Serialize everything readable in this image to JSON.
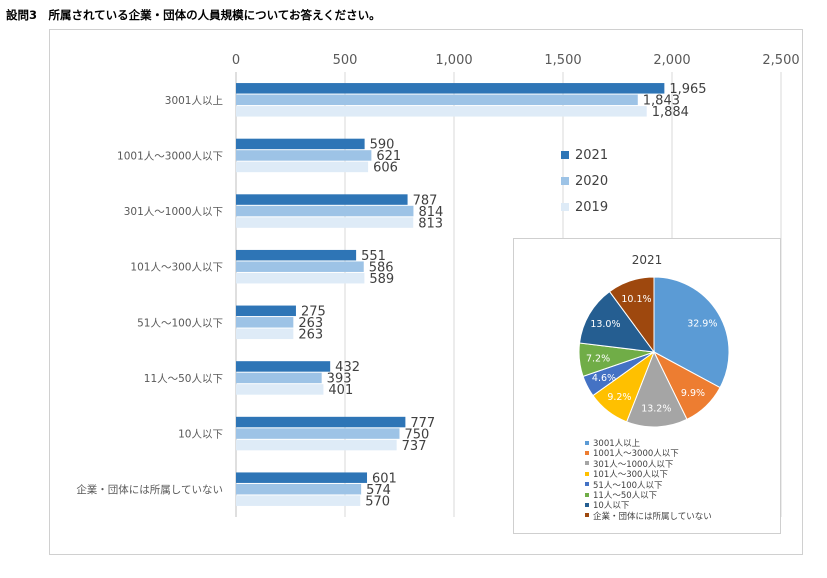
{
  "page": {
    "title": "設問3　所属されている企業・団体の人員規模についてお答えください。"
  },
  "colors": {
    "y2021": "#2e75b6",
    "y2020": "#9dc3e6",
    "y2019": "#deebf7"
  },
  "chart_data": [
    {
      "type": "bar",
      "orientation": "horizontal",
      "title": "",
      "xlim": [
        0,
        2500
      ],
      "xticks": [
        0,
        500,
        1000,
        1500,
        2000,
        2500
      ],
      "xtick_labels": [
        "0",
        "500",
        "1,000",
        "1,500",
        "2,000",
        "2,500"
      ],
      "grid": true,
      "legend_position": "right",
      "categories": [
        "3001人以上",
        "1001人～3000人以下",
        "301人～1000人以下",
        "101人～300人以下",
        "51人～100人以下",
        "11人～50人以下",
        "10人以下",
        "企業・団体には所属していない"
      ],
      "series": [
        {
          "name": "2021",
          "color": "#2e75b6",
          "values": [
            1965,
            590,
            787,
            551,
            275,
            432,
            777,
            601
          ],
          "labels": [
            "1,965",
            "590",
            "787",
            "551",
            "275",
            "432",
            "777",
            "601"
          ]
        },
        {
          "name": "2020",
          "color": "#9dc3e6",
          "values": [
            1843,
            621,
            814,
            586,
            263,
            393,
            750,
            574
          ],
          "labels": [
            "1,843",
            "621",
            "814",
            "586",
            "263",
            "393",
            "750",
            "574"
          ]
        },
        {
          "name": "2019",
          "color": "#deebf7",
          "values": [
            1884,
            606,
            813,
            589,
            263,
            401,
            737,
            570
          ],
          "labels": [
            "1,884",
            "606",
            "813",
            "589",
            "263",
            "401",
            "737",
            "570"
          ]
        }
      ]
    },
    {
      "type": "pie",
      "title": "2021",
      "legend_position": "bottom",
      "labels": [
        "3001人以上",
        "1001人～3000人以下",
        "301人～1000人以下",
        "101人～300人以下",
        "51人～100人以下",
        "11人～50人以下",
        "10人以下",
        "企業・団体には所属していない"
      ],
      "values": [
        32.9,
        9.9,
        13.2,
        9.2,
        4.6,
        7.2,
        13.0,
        10.1
      ],
      "value_labels": [
        "32.9%",
        "9.9%",
        "13.2%",
        "9.2%",
        "4.6%",
        "7.2%",
        "13.0%",
        "10.1%"
      ],
      "colors": [
        "#5b9bd5",
        "#ed7d31",
        "#a5a5a5",
        "#ffc000",
        "#4472c4",
        "#70ad47",
        "#255e91",
        "#9e480e"
      ]
    }
  ]
}
